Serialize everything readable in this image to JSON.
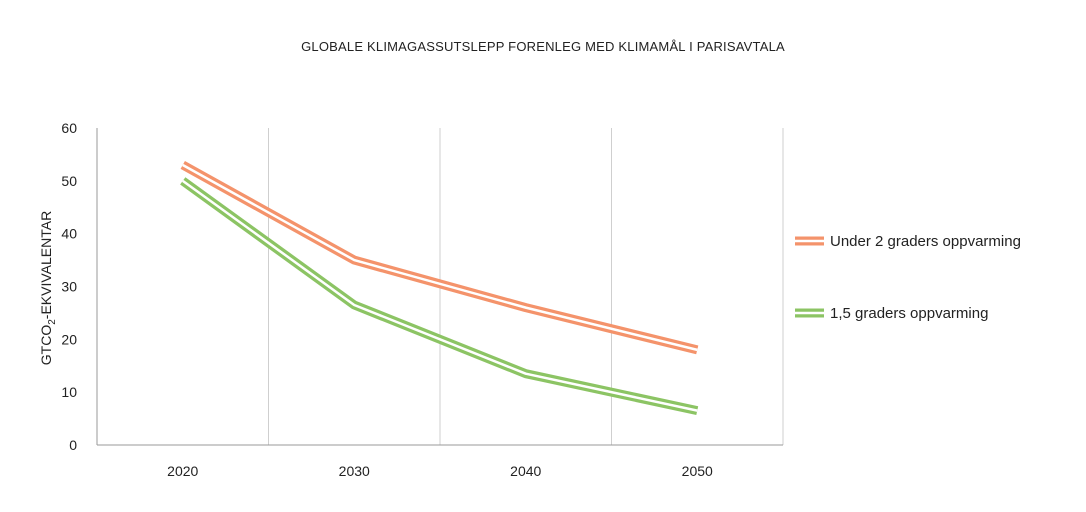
{
  "chart_data": {
    "type": "line",
    "title": "GLOBALE KLIMAGASSUTSLEPP FORENLEG MED KLIMAMÅL I PARISAVTALA",
    "ylabel": "GTCO2-EKVIVALENTAR",
    "categories": [
      "2020",
      "2030",
      "2040",
      "2050"
    ],
    "ylim": [
      0,
      60
    ],
    "yticks": [
      0,
      10,
      20,
      30,
      40,
      50,
      60
    ],
    "legend_position": "right",
    "series": [
      {
        "name": "Under 2 graders oppvarming",
        "color": "#f4936b",
        "values": [
          53,
          35,
          26,
          18
        ]
      },
      {
        "name": "1,5 graders oppvarming",
        "color": "#8cc464",
        "values": [
          50,
          26.5,
          13.5,
          6.5
        ]
      }
    ]
  }
}
